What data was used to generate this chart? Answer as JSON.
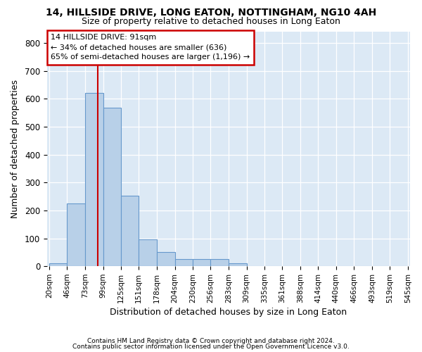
{
  "title": "14, HILLSIDE DRIVE, LONG EATON, NOTTINGHAM, NG10 4AH",
  "subtitle": "Size of property relative to detached houses in Long Eaton",
  "xlabel": "Distribution of detached houses by size in Long Eaton",
  "ylabel": "Number of detached properties",
  "footer_line1": "Contains HM Land Registry data © Crown copyright and database right 2024.",
  "footer_line2": "Contains public sector information licensed under the Open Government Licence v3.0.",
  "annotation_title": "14 HILLSIDE DRIVE: 91sqm",
  "annotation_line2": "← 34% of detached houses are smaller (636)",
  "annotation_line3": "65% of semi-detached houses are larger (1,196) →",
  "property_size": 91,
  "bar_edges": [
    20,
    46,
    73,
    99,
    125,
    151,
    178,
    204,
    230,
    256,
    283,
    309,
    335,
    361,
    388,
    414,
    440,
    466,
    493,
    519,
    545
  ],
  "bar_heights": [
    10,
    225,
    620,
    568,
    252,
    97,
    50,
    26,
    26,
    25,
    10,
    0,
    0,
    0,
    0,
    0,
    0,
    0,
    0,
    0
  ],
  "bar_color": "#b8d0e8",
  "bar_edge_color": "#6699cc",
  "vline_color": "#cc0000",
  "annotation_box_edge_color": "#cc0000",
  "axes_bg_color": "#dce9f5",
  "fig_bg_color": "#ffffff",
  "grid_color": "#ffffff",
  "ylim": [
    0,
    840
  ],
  "yticks": [
    0,
    100,
    200,
    300,
    400,
    500,
    600,
    700,
    800
  ]
}
